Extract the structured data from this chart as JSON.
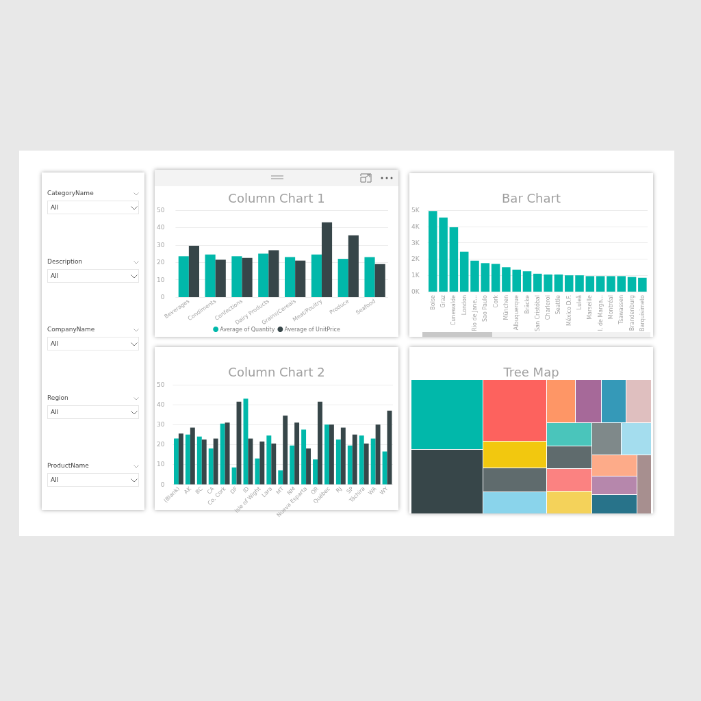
{
  "chart_data": [
    {
      "type": "other",
      "categories": [
        "CategoryName",
        "Description",
        "CompanyName",
        "Region",
        "ProductName"
      ],
      "annotations": [
        "All",
        "All",
        "All",
        "All",
        "All"
      ]
    },
    {
      "type": "bar",
      "title": "Column Chart 1",
      "categories": [
        "Beverages",
        "Condiments",
        "Confections",
        "Dairy Products",
        "Grains/Cereals",
        "Meat/Poultry",
        "Produce",
        "Seafood"
      ],
      "series": [
        {
          "name": "Average of Quantity",
          "color": "#01b8aa",
          "values": [
            23.5,
            24.5,
            23.5,
            25,
            23,
            24.5,
            22,
            23
          ]
        },
        {
          "name": "Average of UnitPrice",
          "color": "#374649",
          "values": [
            29.5,
            21.5,
            22.5,
            27,
            21,
            43,
            35.5,
            19
          ]
        }
      ],
      "ylim": [
        0,
        50
      ],
      "yticks": [
        0,
        10,
        20,
        30,
        40,
        50
      ],
      "grid": "y",
      "legend": "bottom"
    },
    {
      "type": "bar",
      "title": "Bar Chart",
      "categories": [
        "Boise",
        "Graz",
        "Cunewalde",
        "London",
        "Rio de Jane...",
        "Sao Paulo",
        "Cork",
        "München",
        "Albuquerque",
        "Bräcke",
        "San Cristóbal",
        "Charleroi",
        "Seattle",
        "México D.F.",
        "Luleå",
        "Marseille",
        "I. de Marga...",
        "Montréal",
        "Tsawassen",
        "Brandenburg",
        "Barquisimeto"
      ],
      "values": [
        4950,
        4550,
        3950,
        2450,
        1900,
        1750,
        1700,
        1500,
        1350,
        1250,
        1100,
        1050,
        1050,
        1000,
        1000,
        950,
        950,
        950,
        950,
        900,
        850
      ],
      "color": "#01b8aa",
      "ylim": [
        0,
        5000
      ],
      "yticks": [
        {
          "value": 0,
          "label": "0K"
        },
        {
          "value": 1000,
          "label": "1K"
        },
        {
          "value": 2000,
          "label": "2K"
        },
        {
          "value": 3000,
          "label": "3K"
        },
        {
          "value": 4000,
          "label": "4K"
        },
        {
          "value": 5000,
          "label": "5K"
        }
      ],
      "grid": "y"
    },
    {
      "type": "bar",
      "title": "Column Chart 2",
      "categories": [
        "(Blank)",
        "AK",
        "BC",
        "CA",
        "Co. Cork",
        "DF",
        "ID",
        "Isle of Wight",
        "Lara",
        "MT",
        "NM",
        "Nueva Esparta",
        "OR",
        "Québec",
        "RJ",
        "SP",
        "Táchira",
        "WA",
        "WY"
      ],
      "series": [
        {
          "color": "#01b8aa",
          "values": [
            23,
            25,
            24,
            18,
            30.5,
            8.5,
            43,
            13,
            24.5,
            7,
            19.5,
            27.5,
            12.5,
            30,
            22.5,
            19.5,
            24.5,
            23,
            16.5
          ]
        },
        {
          "color": "#374649",
          "values": [
            25.5,
            28.5,
            22.5,
            23,
            31,
            41.5,
            23,
            21.5,
            20.5,
            34.5,
            31,
            18,
            41.5,
            30,
            28.5,
            25,
            20.5,
            30,
            37
          ]
        }
      ],
      "ylim": [
        0,
        50
      ],
      "yticks": [
        0,
        10,
        20,
        30,
        40,
        50
      ],
      "grid": "y"
    },
    {
      "type": "other",
      "title": "Tree Map"
    }
  ]
}
